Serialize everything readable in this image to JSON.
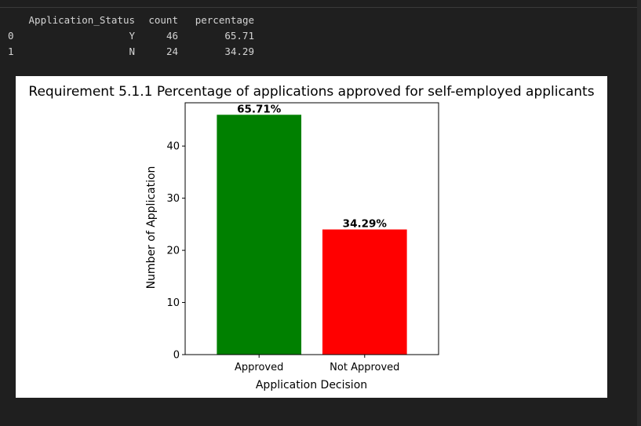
{
  "dataframe": {
    "columns": [
      "Application_Status",
      "count",
      "percentage"
    ],
    "rows": [
      {
        "index": "0",
        "Application_Status": "Y",
        "count": "46",
        "percentage": "65.71"
      },
      {
        "index": "1",
        "Application_Status": "N",
        "count": "24",
        "percentage": "34.29"
      }
    ]
  },
  "chart_data": {
    "type": "bar",
    "title": "Requirement 5.1.1 Percentage of applications approved for self-employed applicants",
    "categories": [
      "Approved",
      "Not Approved"
    ],
    "values": [
      46,
      24
    ],
    "data_labels": [
      "65.71%",
      "34.29%"
    ],
    "bar_colors": [
      "#008000",
      "#ff0000"
    ],
    "xlabel": "Application Decision",
    "ylabel": "Number of Application",
    "ylim": [
      0,
      48.3
    ],
    "yticks": [
      0,
      10,
      20,
      30,
      40
    ],
    "grid": false
  }
}
